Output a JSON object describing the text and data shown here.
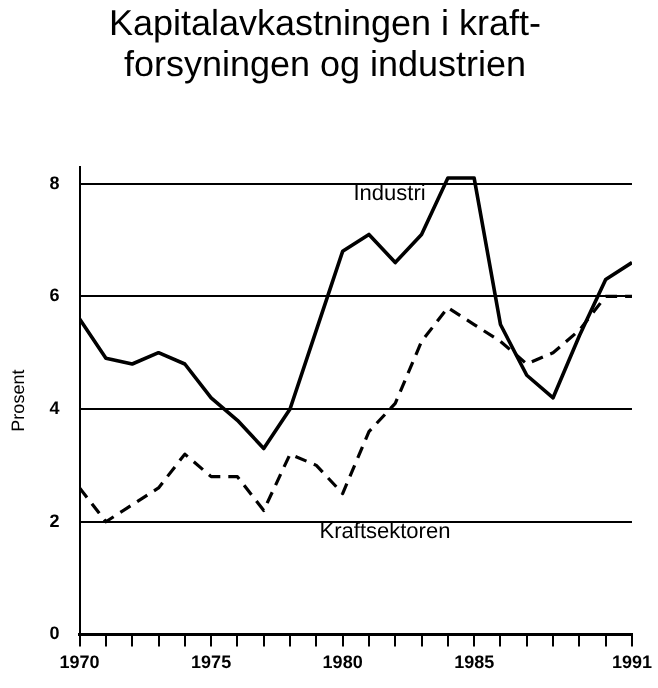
{
  "chart_data": {
    "type": "line",
    "title": "Kapitalavkastningen i kraft-\nforsyningen og industrien",
    "ylabel": "Prosent",
    "x": [
      1970,
      1971,
      1972,
      1973,
      1974,
      1975,
      1976,
      1977,
      1978,
      1979,
      1980,
      1981,
      1982,
      1983,
      1984,
      1985,
      1986,
      1987,
      1988,
      1989,
      1990,
      1991
    ],
    "series": [
      {
        "name": "Industri",
        "color": "#000000",
        "line_style": "solid",
        "values": [
          5.6,
          4.9,
          4.8,
          5.0,
          4.8,
          4.2,
          3.8,
          3.3,
          4.0,
          5.4,
          6.8,
          7.1,
          6.6,
          7.1,
          8.1,
          8.1,
          5.5,
          4.6,
          4.2,
          5.3,
          6.3,
          6.6
        ]
      },
      {
        "name": "Kraftsektoren",
        "color": "#000000",
        "line_style": "dashed",
        "values": [
          2.6,
          2.0,
          2.3,
          2.6,
          3.2,
          2.8,
          2.8,
          2.2,
          3.2,
          3.0,
          2.5,
          3.6,
          4.1,
          5.2,
          5.8,
          5.5,
          5.2,
          4.8,
          5.0,
          5.4,
          6.0,
          6.0
        ]
      }
    ],
    "xlim": [
      1970,
      1991
    ],
    "xticks": [
      1970,
      {
        "value": 1971,
        "label": null
      },
      {
        "value": 1972,
        "label": null
      },
      {
        "value": 1973,
        "label": null
      },
      {
        "value": 1974,
        "label": null
      },
      1975,
      {
        "value": 1976,
        "label": null
      },
      {
        "value": 1977,
        "label": null
      },
      {
        "value": 1978,
        "label": null
      },
      {
        "value": 1979,
        "label": null
      },
      1980,
      {
        "value": 1981,
        "label": null
      },
      {
        "value": 1982,
        "label": null
      },
      {
        "value": 1983,
        "label": null
      },
      {
        "value": 1984,
        "label": null
      },
      1985,
      {
        "value": 1986,
        "label": null
      },
      {
        "value": 1987,
        "label": null
      },
      {
        "value": 1988,
        "label": null
      },
      {
        "value": 1989,
        "label": null
      },
      {
        "value": 1990,
        "label": null
      },
      1991
    ],
    "ylim": [
      0,
      8.3
    ],
    "yticks": [
      0,
      2,
      4,
      6,
      8
    ],
    "grid": "y",
    "legend": false,
    "marker": "none"
  }
}
